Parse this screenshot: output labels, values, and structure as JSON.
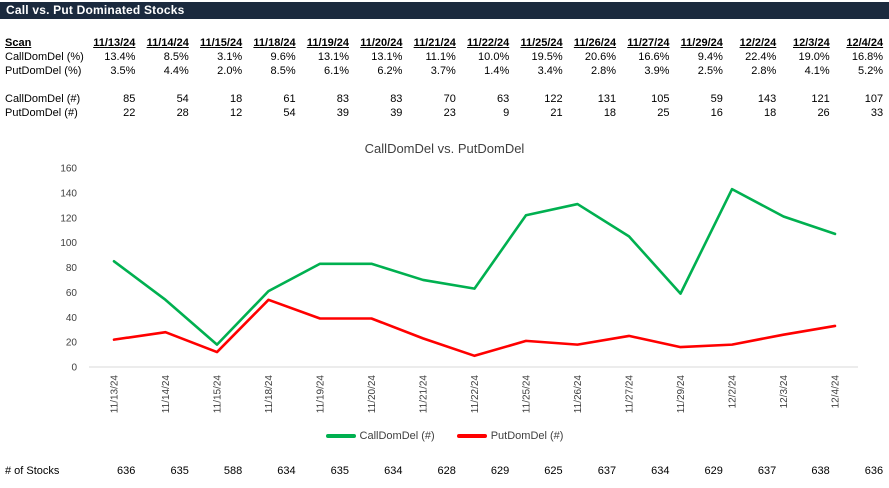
{
  "title_bar": {
    "title": "Call vs. Put Dominated Stocks"
  },
  "table": {
    "scan_label": "Scan",
    "dates": [
      "11/13/24",
      "11/14/24",
      "11/15/24",
      "11/18/24",
      "11/19/24",
      "11/20/24",
      "11/21/24",
      "11/22/24",
      "11/25/24",
      "11/26/24",
      "11/27/24",
      "11/29/24",
      "12/2/24",
      "12/3/24",
      "12/4/24"
    ],
    "rows": [
      {
        "label": "CallDomDel (%)",
        "values": [
          "13.4%",
          "8.5%",
          "3.1%",
          "9.6%",
          "13.1%",
          "13.1%",
          "11.1%",
          "10.0%",
          "19.5%",
          "20.6%",
          "16.6%",
          "9.4%",
          "22.4%",
          "19.0%",
          "16.8%"
        ]
      },
      {
        "label": "PutDomDel (%)",
        "values": [
          "3.5%",
          "4.4%",
          "2.0%",
          "8.5%",
          "6.1%",
          "6.2%",
          "3.7%",
          "1.4%",
          "3.4%",
          "2.8%",
          "3.9%",
          "2.5%",
          "2.8%",
          "4.1%",
          "5.2%"
        ]
      },
      {
        "label": "CallDomDel (#)",
        "values": [
          85,
          54,
          18,
          61,
          83,
          83,
          70,
          63,
          122,
          131,
          105,
          59,
          143,
          121,
          107
        ]
      },
      {
        "label": "PutDomDel (#)",
        "values": [
          22,
          28,
          12,
          54,
          39,
          39,
          23,
          9,
          21,
          18,
          25,
          16,
          18,
          26,
          33
        ]
      }
    ],
    "stocks_row": {
      "label": "# of Stocks",
      "values": [
        636,
        635,
        588,
        634,
        635,
        634,
        628,
        629,
        625,
        637,
        634,
        629,
        637,
        638,
        636
      ]
    }
  },
  "chart_data": {
    "type": "line",
    "title": "CallDomDel vs. PutDomDel",
    "categories": [
      "11/13/24",
      "11/14/24",
      "11/15/24",
      "11/18/24",
      "11/19/24",
      "11/20/24",
      "11/21/24",
      "11/22/24",
      "11/25/24",
      "11/26/24",
      "11/27/24",
      "11/29/24",
      "12/2/24",
      "12/3/24",
      "12/4/24"
    ],
    "series": [
      {
        "name": "CallDomDel (#)",
        "color": "#00B050",
        "values": [
          85,
          54,
          18,
          61,
          83,
          83,
          70,
          63,
          122,
          131,
          105,
          59,
          143,
          121,
          107
        ]
      },
      {
        "name": "PutDomDel (#)",
        "color": "#FF0000",
        "values": [
          22,
          28,
          12,
          54,
          39,
          39,
          23,
          9,
          21,
          18,
          25,
          16,
          18,
          26,
          33
        ]
      }
    ],
    "xlabel": "",
    "ylabel": "",
    "ylim": [
      0,
      160
    ],
    "ytick_step": 20,
    "grid": false,
    "legend_position": "bottom"
  },
  "colors": {
    "header_bg": "#1b2a3e",
    "header_text": "#ffffff",
    "axis_line": "#d9d9d9",
    "chart_text": "#404040",
    "call_series": "#00B050",
    "put_series": "#FF0000"
  }
}
